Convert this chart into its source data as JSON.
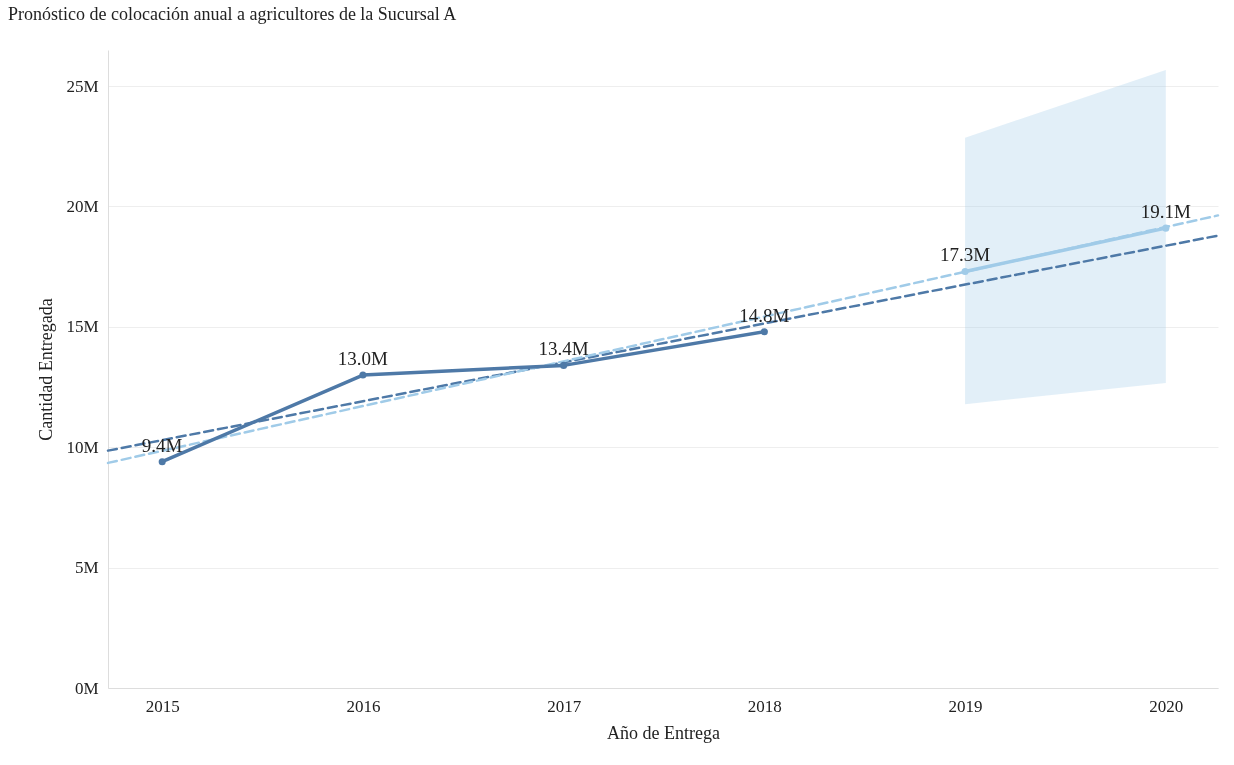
{
  "chart_data": {
    "type": "line",
    "title": "Pronóstico de colocación anual a agricultores de la Sucursal A",
    "xlabel": "Año de Entrega",
    "ylabel": "Cantidad Entregada",
    "xlim": [
      2014.73,
      2020.26
    ],
    "xticks": [
      2015,
      2016,
      2017,
      2018,
      2019,
      2020
    ],
    "ylim": [
      0,
      26.5
    ],
    "yticks": [
      {
        "value": 0,
        "label": "0M"
      },
      {
        "value": 5,
        "label": "5M"
      },
      {
        "value": 10,
        "label": "10M"
      },
      {
        "value": 15,
        "label": "15M"
      },
      {
        "value": 20,
        "label": "20M"
      },
      {
        "value": 25,
        "label": "25M"
      }
    ],
    "grid": "y",
    "marker": "circle",
    "series": [
      {
        "color": "#4e79a7",
        "line_style": "dashed",
        "marker": "none",
        "x": [
          2014.73,
          2020.26
        ],
        "values": [
          9.86,
          18.79
        ]
      },
      {
        "color": "#a0cbe8",
        "line_style": "dashed",
        "marker": "none",
        "x": [
          2014.73,
          2020.26
        ],
        "values": [
          9.35,
          19.63
        ]
      },
      {
        "color": "#4e79a7",
        "line_style": "solid",
        "x": [
          2015,
          2016,
          2017,
          2018
        ],
        "values": [
          9.4,
          13.0,
          13.4,
          14.8
        ],
        "value_labels": [
          "9.4M",
          "13.0M",
          "13.4M",
          "14.8M"
        ]
      },
      {
        "color": "#a0cbe8",
        "line_style": "solid",
        "x": [
          2019,
          2020
        ],
        "values": [
          17.3,
          19.1
        ],
        "lower": [
          11.79,
          12.67
        ],
        "upper": [
          22.86,
          25.67
        ],
        "value_labels": [
          "17.3M",
          "19.1M"
        ]
      }
    ]
  }
}
